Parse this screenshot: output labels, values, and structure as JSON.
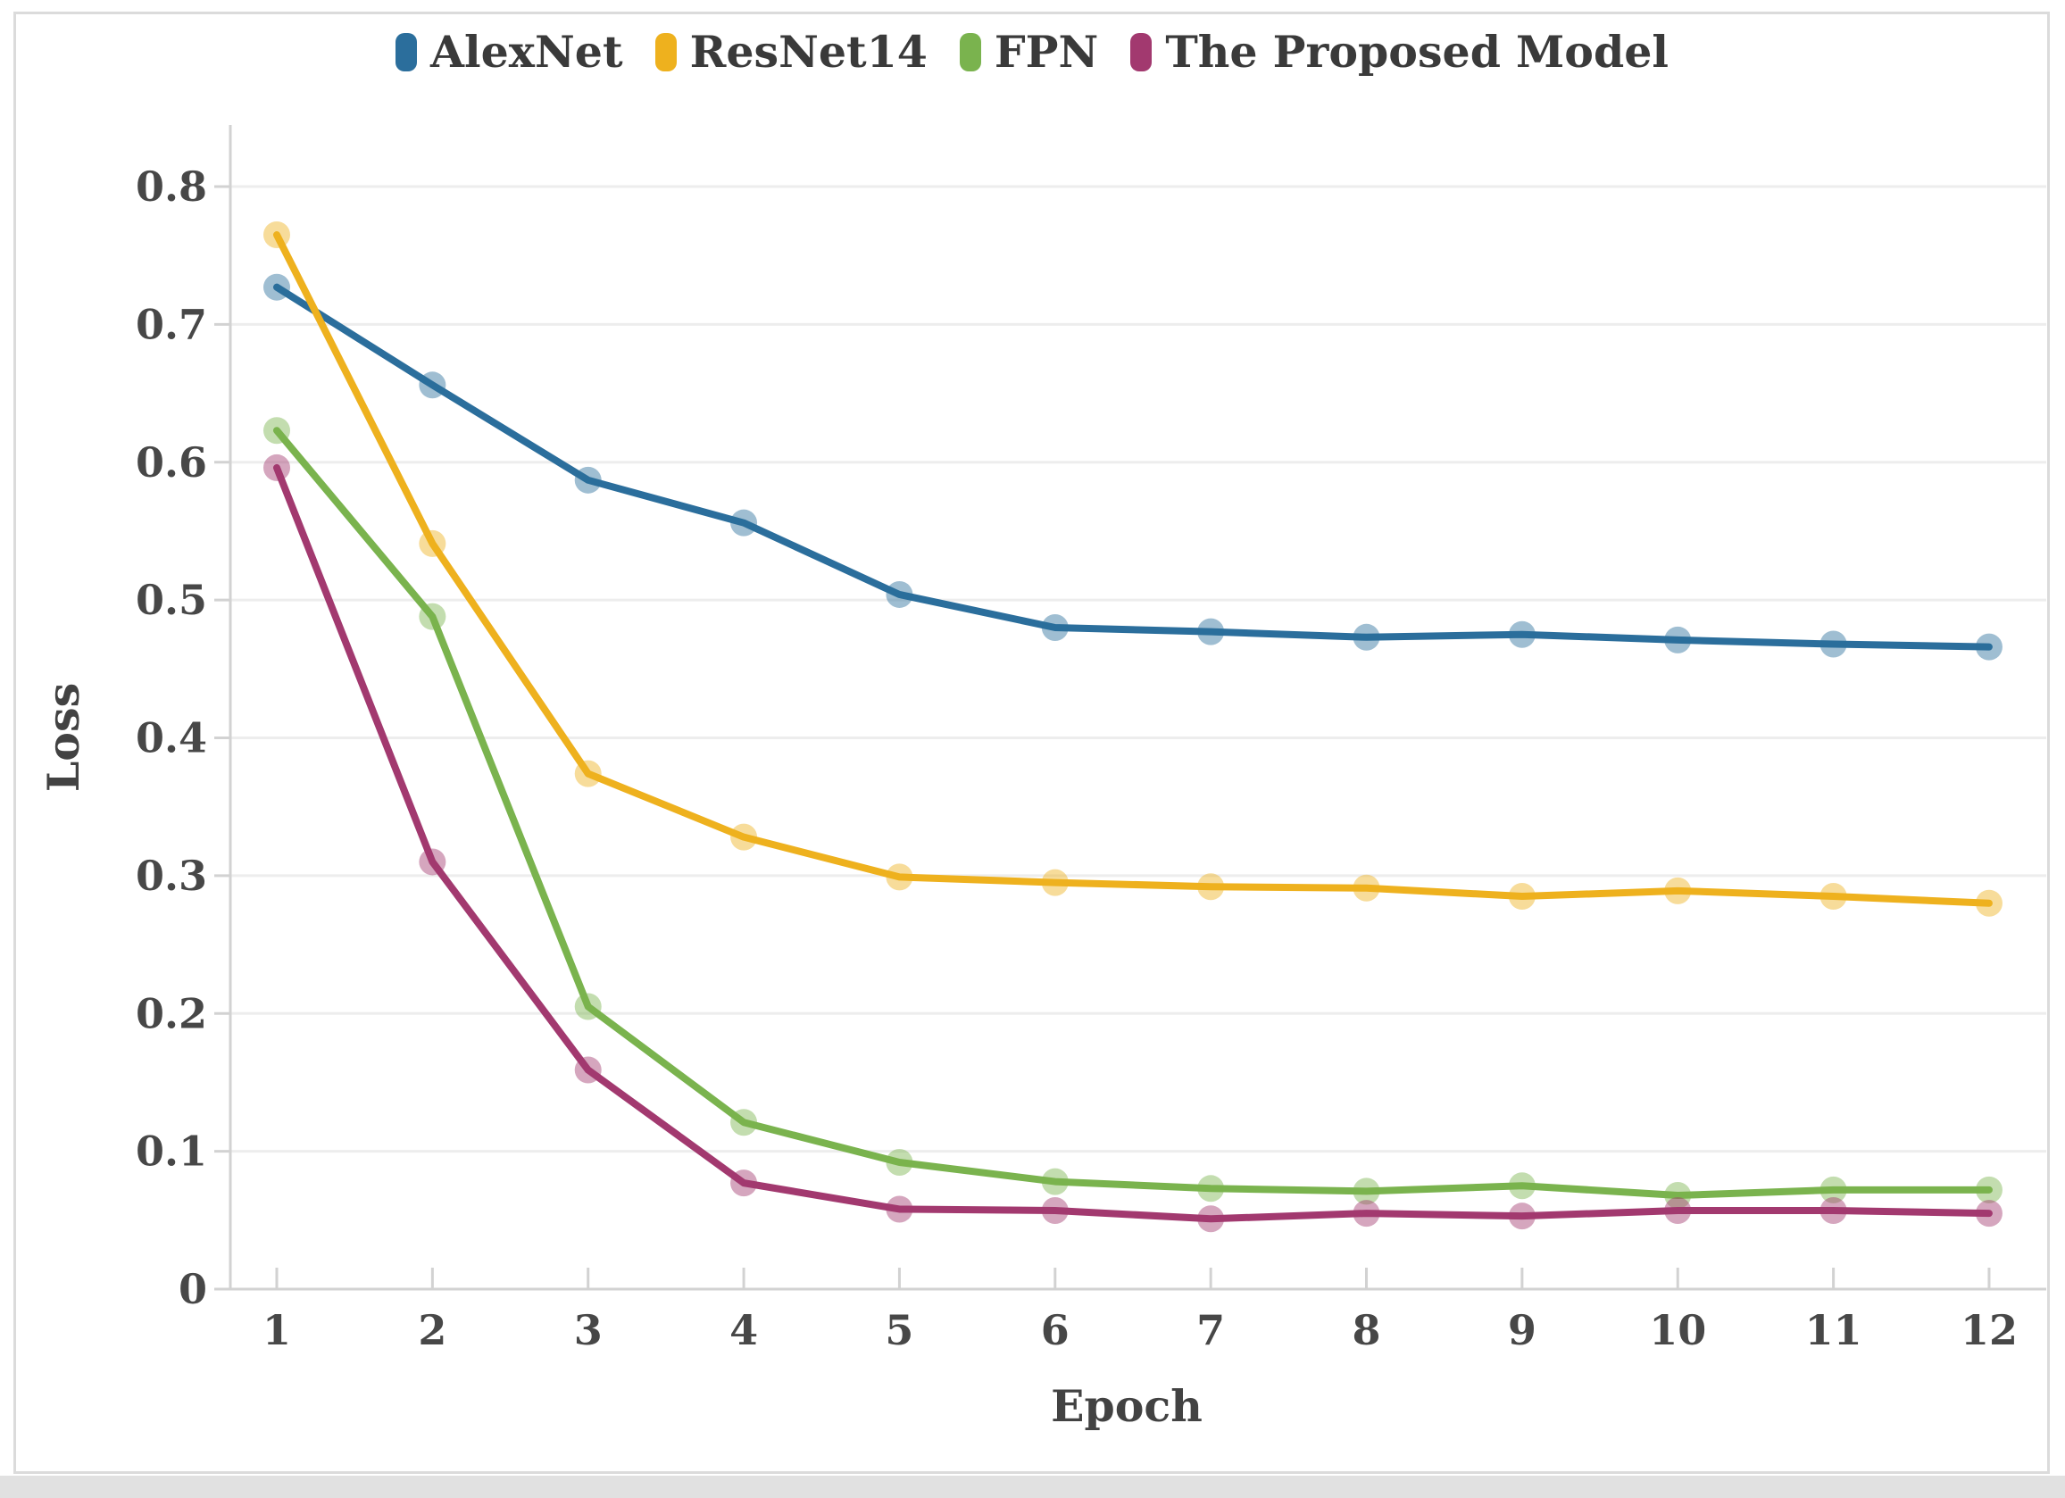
{
  "chart_data": {
    "type": "line",
    "title": "",
    "xlabel": "Epoch",
    "ylabel": "Loss",
    "x": [
      1,
      2,
      3,
      4,
      5,
      6,
      7,
      8,
      9,
      10,
      11,
      12
    ],
    "xtick_labels": [
      "1",
      "2",
      "3",
      "4",
      "5",
      "6",
      "7",
      "8",
      "9",
      "10",
      "11",
      "12"
    ],
    "ytick_labels": [
      "0",
      "0.1",
      "0.2",
      "0.3",
      "0.4",
      "0.5",
      "0.6",
      "0.7",
      "0.8"
    ],
    "yticks": [
      0,
      0.1,
      0.2,
      0.3,
      0.4,
      0.5,
      0.6,
      0.7,
      0.8
    ],
    "ylim": [
      0,
      0.8
    ],
    "grid": true,
    "legend_position": "top",
    "series": [
      {
        "name": "AlexNet",
        "color": "#2b6e9c",
        "values": [
          0.727,
          0.656,
          0.587,
          0.556,
          0.504,
          0.48,
          0.477,
          0.473,
          0.475,
          0.471,
          0.468,
          0.466
        ]
      },
      {
        "name": "ResNet14",
        "color": "#eeb11e",
        "values": [
          0.765,
          0.541,
          0.374,
          0.328,
          0.299,
          0.295,
          0.292,
          0.291,
          0.285,
          0.289,
          0.285,
          0.28
        ]
      },
      {
        "name": "FPN",
        "color": "#7ab34e",
        "values": [
          0.623,
          0.488,
          0.205,
          0.121,
          0.092,
          0.078,
          0.073,
          0.071,
          0.075,
          0.068,
          0.072,
          0.072
        ]
      },
      {
        "name": "The Proposed Model",
        "color": "#a2396f",
        "values": [
          0.596,
          0.31,
          0.159,
          0.077,
          0.058,
          0.057,
          0.051,
          0.055,
          0.053,
          0.057,
          0.057,
          0.055
        ]
      }
    ],
    "style": {
      "grid_color": "#ededed",
      "axis_color": "#d2d2d2",
      "text_color": "#424242",
      "marker_opacity": 0.45
    }
  }
}
